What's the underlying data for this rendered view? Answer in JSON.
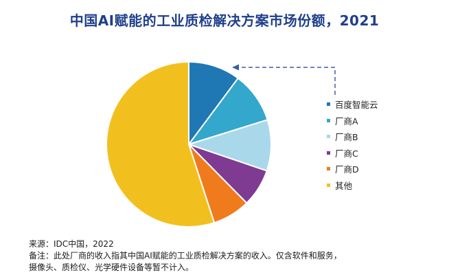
{
  "title": "中国AI赋能的工业质检解决方案市场份额，2021",
  "chart_data": {
    "type": "pie",
    "title": "中国AI赋能的工业质检解决方案市场份额，2021",
    "slices": [
      {
        "label": "百度智能云",
        "value": 10.2,
        "color": "#1f77b4"
      },
      {
        "label": "厂商A",
        "value": 10.0,
        "color": "#33a7cc"
      },
      {
        "label": "厂商B",
        "value": 10.0,
        "color": "#a9d8ea"
      },
      {
        "label": "厂商C",
        "value": 7.4,
        "color": "#7f3a92"
      },
      {
        "label": "厂商D",
        "value": 7.4,
        "color": "#f07b1c"
      },
      {
        "label": "其他",
        "value": 55.0,
        "color": "#f2c01e"
      }
    ],
    "legend_position": "right",
    "highlight": "百度智能云"
  },
  "footer": {
    "source": "来源：IDC中国，2022",
    "note_line1": "备注：此处厂商的收入指其中国AI赋能的工业质检解决方案的收入。仅含软件和服务，",
    "note_line2": "摄像头、质检仪、光学硬件设备等暂不计入。"
  }
}
